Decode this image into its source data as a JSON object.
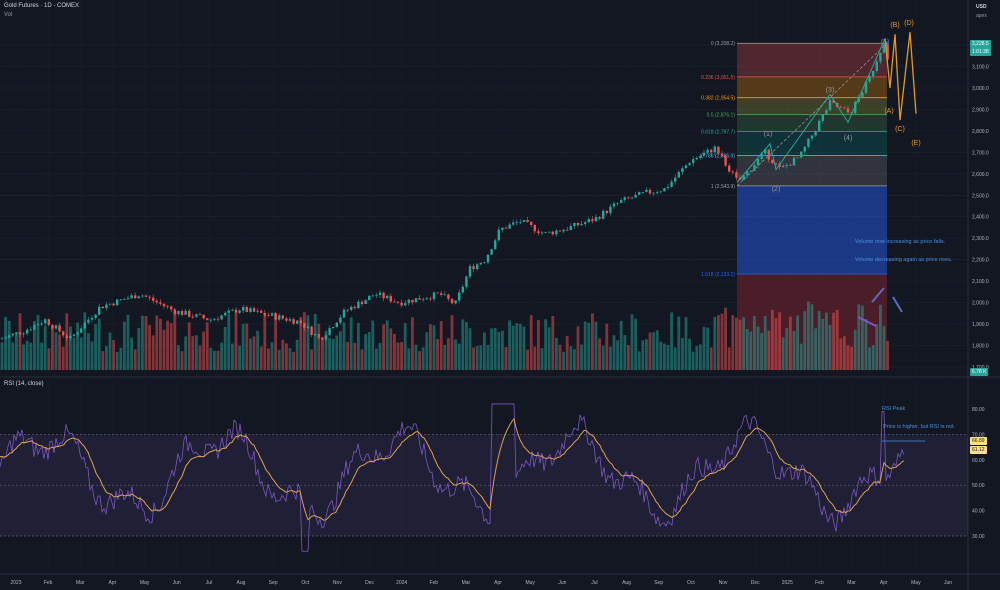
{
  "header": {
    "symbol_title": "Gold Futures · 1D · COMEX",
    "volume_label": "Vol",
    "currency": "USD",
    "currency_sub": "apex",
    "rsi_title": "RSI (14, close)"
  },
  "colors": {
    "background": "#131722",
    "up": "#26a69a",
    "down": "#ef5350",
    "rsi_line": "#7e57c2",
    "rsi_ma": "#e0a050",
    "wave": "#e09a2a",
    "label_blue": "#4a90e2"
  },
  "price_axis": {
    "ticks": [
      "3,200.0",
      "3,100.0",
      "3,000.0",
      "2,900.0",
      "2,800.0",
      "2,700.0",
      "2,600.0",
      "2,500.0",
      "2,400.0",
      "2,300.0",
      "2,200.0",
      "2,100.0",
      "2,000.0",
      "1,900.0",
      "1,800.0",
      "1,700.0"
    ],
    "last_price": "3,228.5",
    "last_price_sub": "1:01:38",
    "volume_tag": "6.78 K"
  },
  "rsi_axis": {
    "ticks": [
      "80.00",
      "70.00",
      "60.00",
      "50.00",
      "40.00",
      "30.00"
    ],
    "value_1": "66.89",
    "value_2": "61.12"
  },
  "time_axis": [
    "2023",
    "Feb",
    "Mar",
    "Apr",
    "May",
    "Jun",
    "Jul",
    "Aug",
    "Sep",
    "Oct",
    "Nov",
    "Dec",
    "2024",
    "Feb",
    "Mar",
    "Apr",
    "May",
    "Jun",
    "Jul",
    "Aug",
    "Sep",
    "Oct",
    "Nov",
    "Dec",
    "2025",
    "Feb",
    "Mar",
    "Apr",
    "May",
    "Jun"
  ],
  "fib_levels": [
    {
      "label": "0 (3,208.2)",
      "price": 3208.2,
      "color": "#9e9e9e",
      "fill": "rgba(239,83,80,0.28)"
    },
    {
      "label": "0.236 (3,051.5)",
      "price": 3051.5,
      "color": "#ef5350",
      "fill": "rgba(255,152,0,0.28)"
    },
    {
      "label": "0.382 (2,954.5)",
      "price": 2954.5,
      "color": "#ff9800",
      "fill": "rgba(205,220,57,0.22)"
    },
    {
      "label": "0.5 (2,876.1)",
      "price": 2876.1,
      "color": "#4caf50",
      "fill": "rgba(76,175,80,0.22)"
    },
    {
      "label": "0.618 (2,797.7)",
      "price": 2797.7,
      "color": "#26a69a",
      "fill": "rgba(0,150,136,0.22)"
    },
    {
      "label": "0.786 (2,686.0)",
      "price": 2686.0,
      "color": "#64b5f6",
      "fill": "rgba(158,158,158,0.22)"
    },
    {
      "label": "1 (2,543.9)",
      "price": 2543.9,
      "color": "#9e9e9e",
      "fill": "rgba(41,98,255,0.45)"
    },
    {
      "label": "1.618 (2,133.2)",
      "price": 2133.2,
      "color": "#2962ff",
      "fill": "rgba(178,40,51,0.35)"
    }
  ],
  "waves": {
    "impulse": [
      "(1)",
      "(2)",
      "(3)",
      "(4)",
      "(5)"
    ],
    "corrective": [
      "(A)",
      "(B)",
      "(C)",
      "(D)",
      "(E)"
    ]
  },
  "annotations": {
    "volume_note": "Volume now increasing as price falls. Volume decreasing again as price rises.",
    "rsi_peak": "RSI Peak",
    "rsi_divergence": "Price is higher, but RSI is not."
  }
}
